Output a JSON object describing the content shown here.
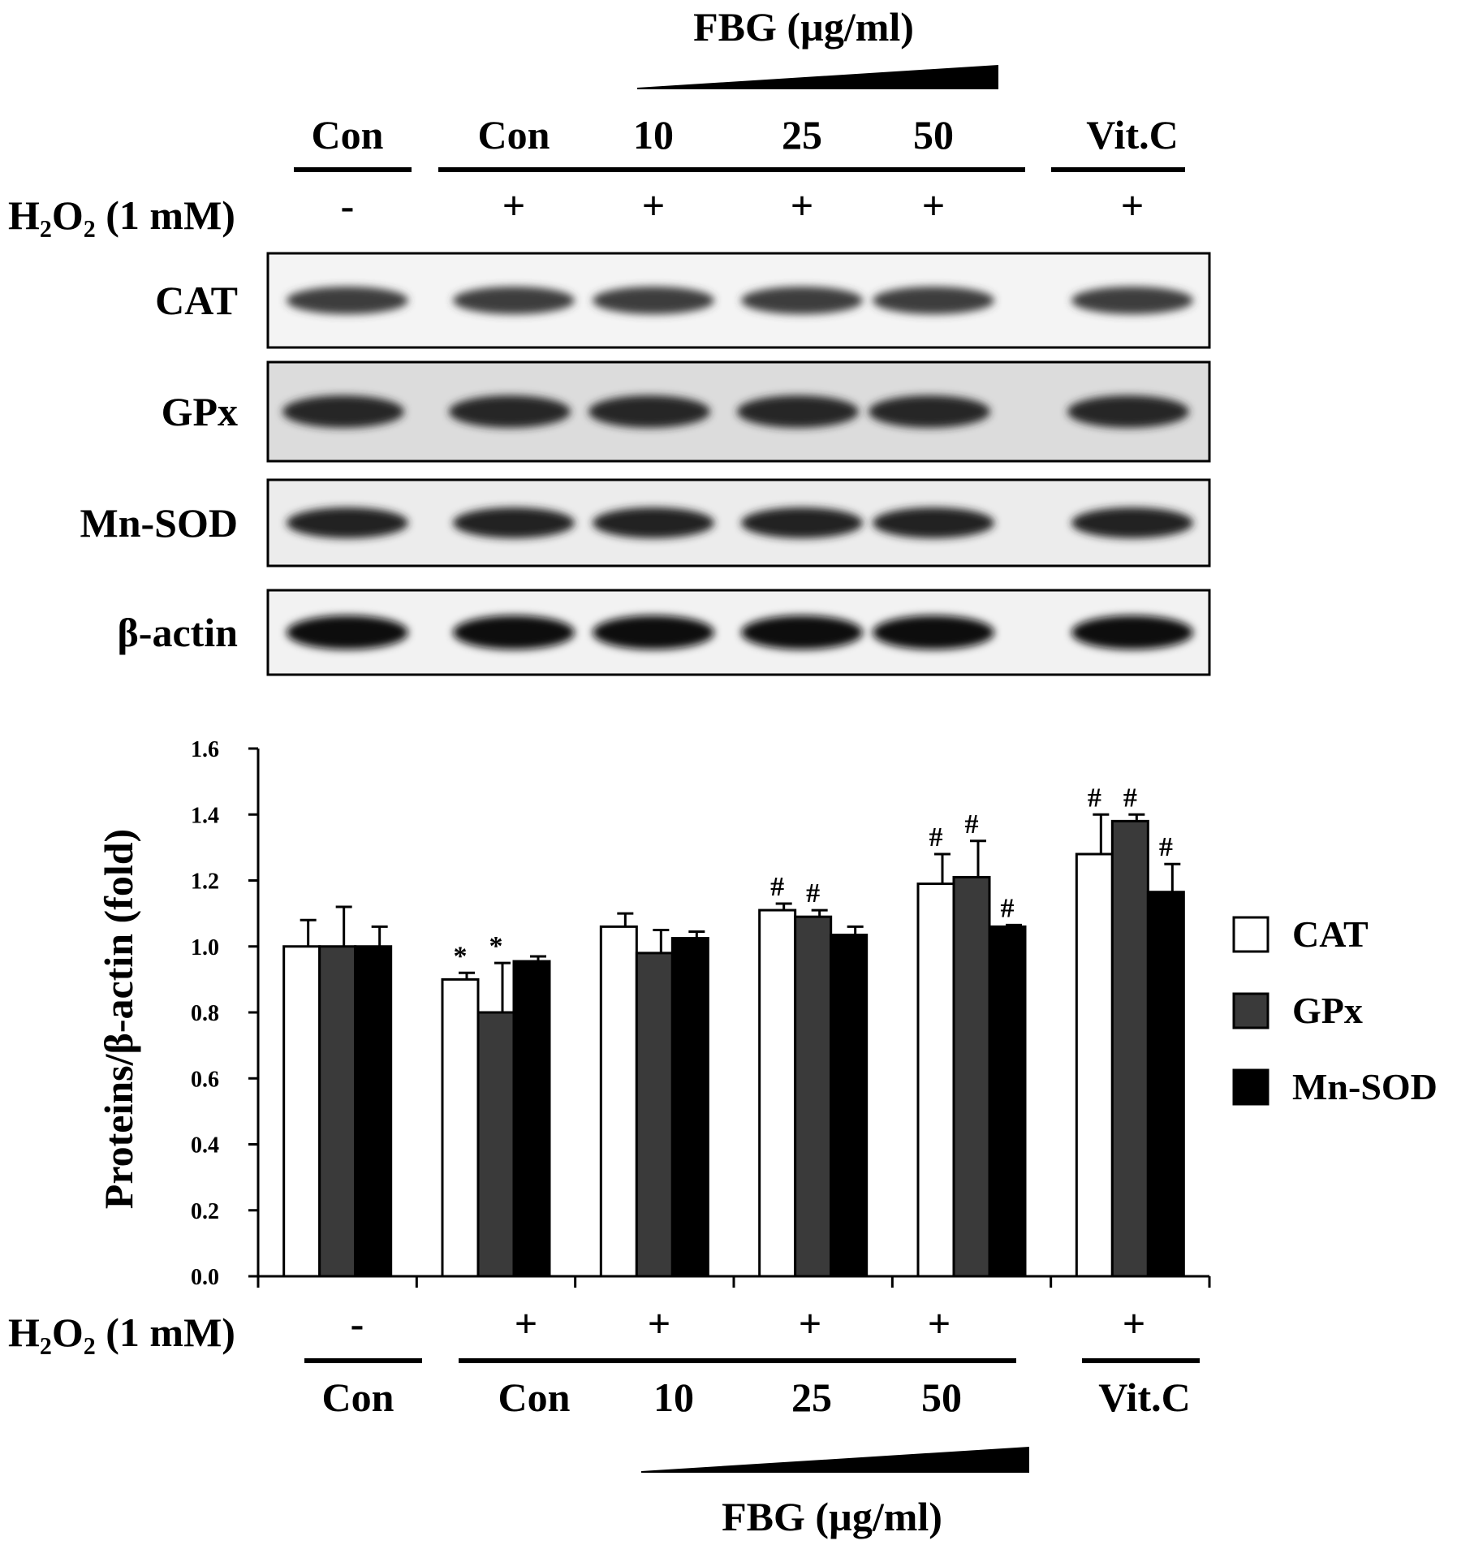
{
  "blot": {
    "fbg_label": "FBG (µg/ml)",
    "groups": [
      "Con",
      "Con",
      "10",
      "25",
      "50",
      "Vit.C"
    ],
    "treatment_label": "H₂O₂ (1 mM)",
    "treatment_signs": [
      "-",
      "+",
      "+",
      "+",
      "+",
      "+"
    ],
    "rows": [
      "CAT",
      "GPx",
      "Mn-SOD",
      "β-actin"
    ]
  },
  "chart_data": {
    "type": "bar",
    "ylabel": "Proteins/β-actin (fold)",
    "ylim": [
      0,
      1.6
    ],
    "yticks": [
      "0.0",
      "0.2",
      "0.4",
      "0.6",
      "0.8",
      "1.0",
      "1.2",
      "1.4",
      "1.6"
    ],
    "categories": [
      "Con",
      "Con",
      "10",
      "25",
      "50",
      "Vit.C"
    ],
    "treatment_label": "H₂O₂ (1 mM)",
    "treatment_signs": [
      "-",
      "+",
      "+",
      "+",
      "+",
      "+"
    ],
    "fbg_label": "FBG (µg/ml)",
    "legend_position": "right",
    "series": [
      {
        "name": "CAT",
        "color": "#ffffff",
        "values": [
          1.0,
          0.9,
          1.06,
          1.11,
          1.19,
          1.28
        ],
        "errors": [
          0.08,
          0.02,
          0.04,
          0.02,
          0.09,
          0.12
        ],
        "marks": [
          "",
          "*",
          "",
          "#",
          "#",
          "#"
        ]
      },
      {
        "name": "GPx",
        "color": "#3a3a3a",
        "values": [
          1.0,
          0.8,
          0.98,
          1.09,
          1.21,
          1.38
        ],
        "errors": [
          0.12,
          0.15,
          0.07,
          0.02,
          0.11,
          0.02
        ],
        "marks": [
          "",
          "*",
          "",
          "#",
          "#",
          "#"
        ]
      },
      {
        "name": "Mn-SOD",
        "color": "#000000",
        "values": [
          1.0,
          0.955,
          1.025,
          1.035,
          1.06,
          1.165
        ],
        "errors": [
          0.06,
          0.015,
          0.02,
          0.025,
          0.005,
          0.085
        ],
        "marks": [
          "",
          "",
          "",
          "",
          "#",
          "#"
        ]
      }
    ]
  }
}
